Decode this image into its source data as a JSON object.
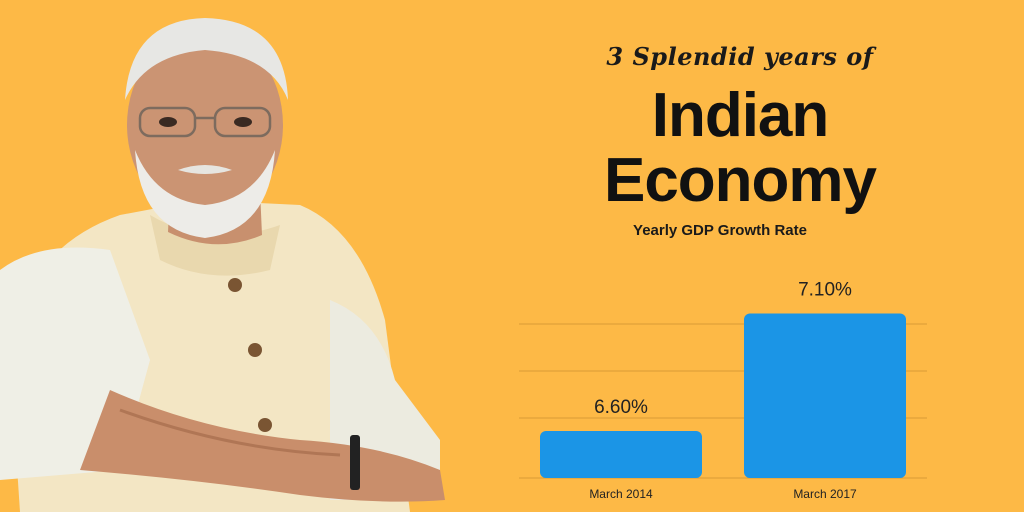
{
  "header": {
    "kicker": "3 Splendid years of",
    "title_line1": "Indian",
    "title_line2": "Economy",
    "subtitle": "Yearly GDP Growth Rate"
  },
  "colors": {
    "background": "#FDB946",
    "bar": "#1B95E6",
    "gridline": "#D99A35",
    "text": "#1a1a1a"
  },
  "chart_data": {
    "type": "bar",
    "title": "Yearly GDP Growth Rate",
    "categories": [
      "March 2014",
      "March 2017"
    ],
    "series": [
      {
        "values": [
          6.6,
          7.1
        ]
      }
    ],
    "data_labels": [
      "6.60%",
      "7.10%"
    ],
    "ylim": [
      6.4,
      7.2
    ],
    "grid": true,
    "legend": "none",
    "xlabel": "",
    "ylabel": ""
  }
}
